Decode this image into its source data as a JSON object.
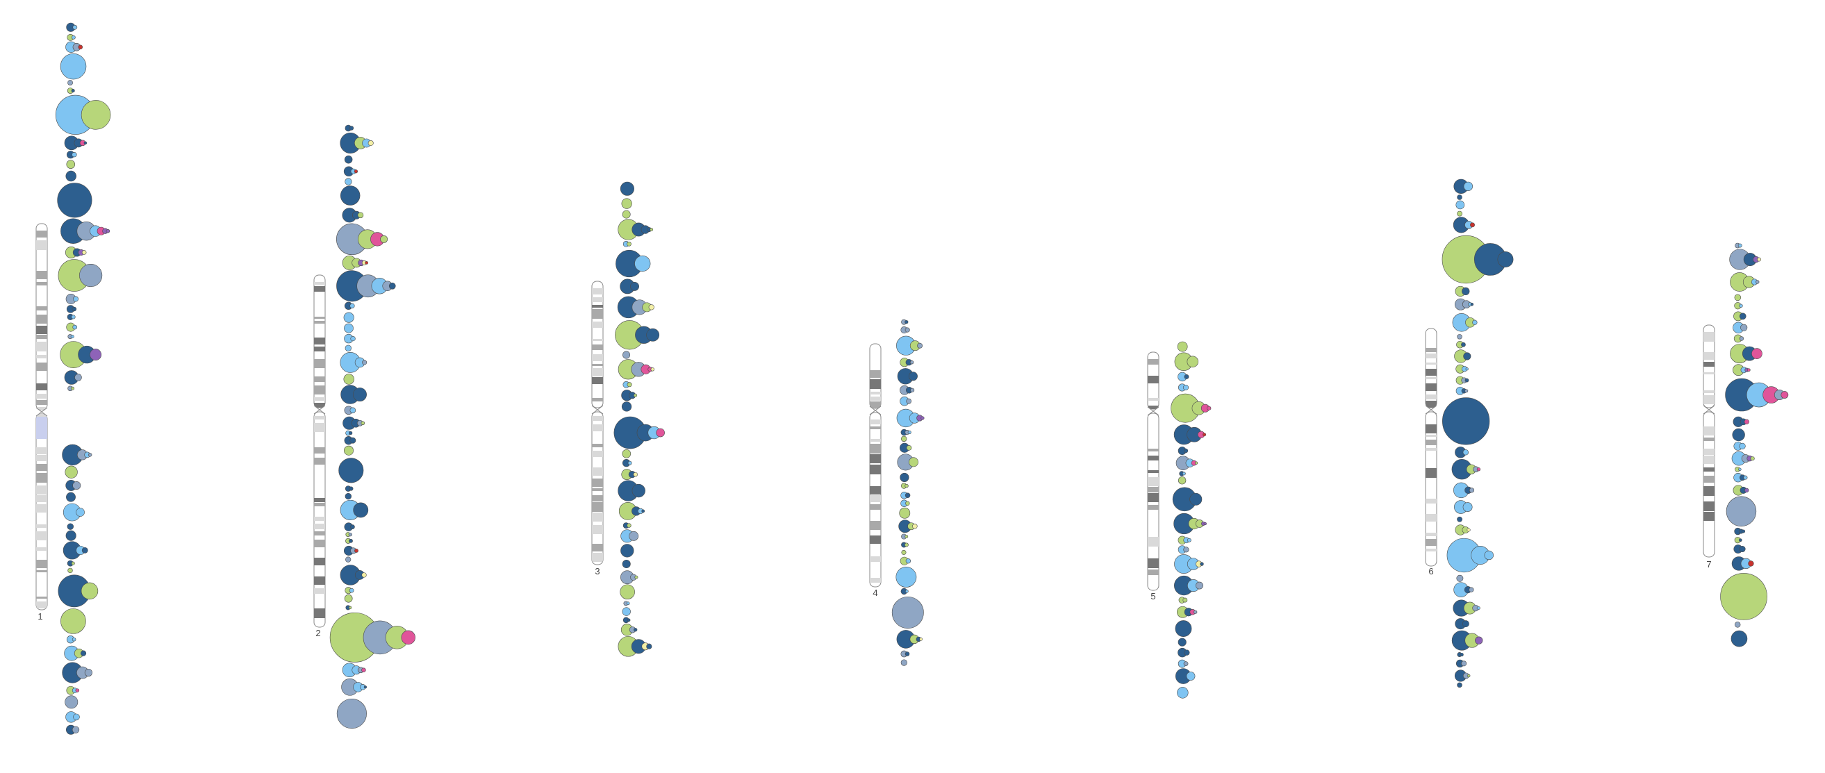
{
  "figure": {
    "kind": "chromosome ideogram with stacked circle annotations",
    "colors": {
      "dark_blue": "#2d5f8f",
      "light_blue": "#7fc4f2",
      "light_green": "#b7d67a",
      "grey_blue": "#8fa6c4",
      "cream": "#f3efa6",
      "pink": "#e0559a",
      "red": "#c8332e",
      "purple": "#8e63b8",
      "band_dark": "#777777",
      "band_mid": "#a9a9a9",
      "band_light": "#d9d9d9",
      "centromere_region": "#c9cfee",
      "chromosome_outline": "#888888"
    }
  },
  "chromosomes": [
    {
      "label": "1"
    },
    {
      "label": "2"
    },
    {
      "label": "3"
    },
    {
      "label": "4"
    },
    {
      "label": "5"
    },
    {
      "label": "6"
    },
    {
      "label": "7"
    }
  ]
}
